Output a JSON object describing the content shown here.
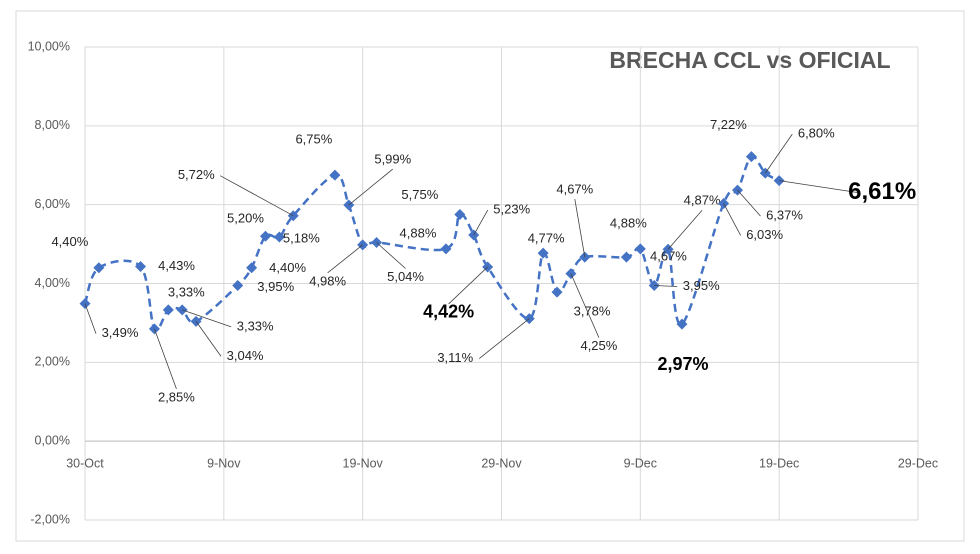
{
  "chart_data": {
    "type": "line",
    "title": "BRECHA CCL vs OFICIAL",
    "x": [
      "30-Oct",
      "31-Oct",
      "3-Nov",
      "4-Nov",
      "5-Nov",
      "6-Nov",
      "7-Nov",
      "10-Nov",
      "11-Nov",
      "12-Nov",
      "13-Nov",
      "14-Nov",
      "17-Nov",
      "18-Nov",
      "19-Nov",
      "20-Nov",
      "25-Nov",
      "26-Nov",
      "27-Nov",
      "28-Nov",
      "1-Dec",
      "2-Dec",
      "3-Dec",
      "4-Dec",
      "5-Dec",
      "8-Dec",
      "9-Dec",
      "10-Dec",
      "11-Dec",
      "12-Dec",
      "15-Dec",
      "16-Dec",
      "17-Dec",
      "18-Dec",
      "19-Dec"
    ],
    "series": [
      {
        "color": "#4472c4",
        "values": [
          3.49,
          4.4,
          4.43,
          2.85,
          3.33,
          3.33,
          3.04,
          3.95,
          4.4,
          5.2,
          5.18,
          5.72,
          6.75,
          5.99,
          4.98,
          5.04,
          4.88,
          5.75,
          5.23,
          4.42,
          3.11,
          4.77,
          3.78,
          4.25,
          4.67,
          4.67,
          4.88,
          3.95,
          4.87,
          2.97,
          6.03,
          6.37,
          7.22,
          6.8,
          6.61
        ],
        "value_labels": [
          "3,49%",
          "4,40%",
          "4,43%",
          "2,85%",
          "3,33%",
          "3,33%",
          "3,04%",
          "3,95%",
          "4,40%",
          "5,20%",
          "5,18%",
          "5,72%",
          "6,75%",
          "5,99%",
          "4,98%",
          "5,04%",
          "4,88%",
          "5,75%",
          "5,23%",
          "4,42%",
          "3,11%",
          "4,77%",
          "3,78%",
          "4,25%",
          "4,67%",
          "4,67%",
          "4,88%",
          "3,95%",
          "4,87%",
          "2,97%",
          "6,03%",
          "6,37%",
          "7,22%",
          "6,80%",
          "6,61%"
        ]
      }
    ],
    "xlim": [
      "30-Oct",
      "29-Dec"
    ],
    "xticks": [
      "30-Oct",
      "9-Nov",
      "19-Nov",
      "29-Nov",
      "9-Dec",
      "19-Dec",
      "29-Dec"
    ],
    "ylim": [
      -2,
      10
    ],
    "yticks": [
      {
        "value": -2,
        "label": "-2,00%"
      },
      {
        "value": 0,
        "label": "0,00%"
      },
      {
        "value": 2,
        "label": "2,00%"
      },
      {
        "value": 4,
        "label": "4,00%"
      },
      {
        "value": 6,
        "label": "6,00%"
      },
      {
        "value": 8,
        "label": "8,00%"
      },
      {
        "value": 10,
        "label": "10,00%"
      }
    ],
    "grid": true
  }
}
